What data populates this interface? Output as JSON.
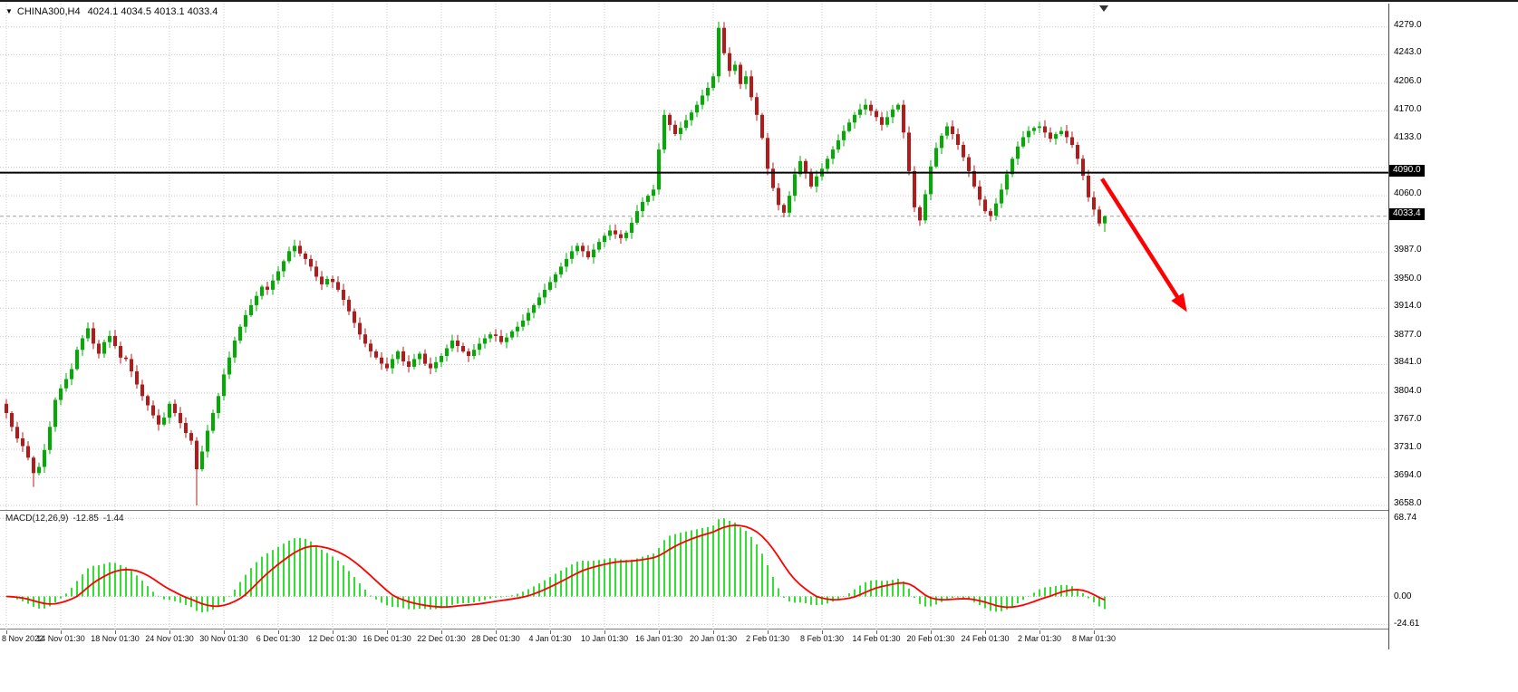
{
  "header": {
    "dropdown_icon": "▼",
    "symbol": "CHINA300,H4",
    "ohlc": "4024.1 4034.5 4013.1 4033.4"
  },
  "indicator_label": {
    "name": "MACD(12,26,9)",
    "macd": "-12.85",
    "signal": "-1.44"
  },
  "colors": {
    "up": "#00ad00",
    "down": "#b31b1b",
    "macd_bar": "#35dd35",
    "signal_line": "#ff0000",
    "grid": "#c9c9c9",
    "hline": "#000000",
    "bid_line": "#a0a0a0",
    "arrow": "#ff0000",
    "axis_text": "#000000",
    "axis_box_bg": "#000000",
    "axis_box_text": "#ffffff",
    "background": "#ffffff"
  },
  "price_axis": {
    "labels": [
      {
        "v": 4279.0,
        "t": "4279.0"
      },
      {
        "v": 4243.0,
        "t": "4243.0"
      },
      {
        "v": 4206.0,
        "t": "4206.0"
      },
      {
        "v": 4170.0,
        "t": "4170.0"
      },
      {
        "v": 4133.0,
        "t": "4133.0"
      },
      {
        "v": 4060.0,
        "t": "4060.0"
      },
      {
        "v": 3987.0,
        "t": "3987.0"
      },
      {
        "v": 3950.0,
        "t": "3950.0"
      },
      {
        "v": 3914.0,
        "t": "3914.0"
      },
      {
        "v": 3877.0,
        "t": "3877.0"
      },
      {
        "v": 3841.0,
        "t": "3841.0"
      },
      {
        "v": 3804.0,
        "t": "3804.0"
      },
      {
        "v": 3767.0,
        "t": "3767.0"
      },
      {
        "v": 3731.0,
        "t": "3731.0"
      },
      {
        "v": 3694.0,
        "t": "3694.0"
      },
      {
        "v": 3658.0,
        "t": "3658.0"
      }
    ],
    "boxes": [
      {
        "v": 4090.0,
        "t": "4090.0"
      },
      {
        "v": 4033.4,
        "t": "4033.4"
      }
    ]
  },
  "macd_axis": {
    "labels": [
      {
        "v": 68.74,
        "t": "68.74"
      },
      {
        "v": 0,
        "t": "0.00"
      },
      {
        "v": -24.61,
        "t": "-24.61"
      }
    ]
  },
  "time_axis": {
    "labels": [
      "8 Nov 2022",
      "14 Nov 01:30",
      "18 Nov 01:30",
      "24 Nov 01:30",
      "30 Nov 01:30",
      "6 Dec 01:30",
      "12 Dec 01:30",
      "16 Dec 01:30",
      "22 Dec 01:30",
      "28 Dec 01:30",
      "4 Jan 01:30",
      "10 Jan 01:30",
      "16 Jan 01:30",
      "20 Jan 01:30",
      "2 Feb 01:30",
      "8 Feb 01:30",
      "14 Feb 01:30",
      "20 Feb 01:30",
      "24 Feb 01:30",
      "2 Mar 01:30",
      "8 Mar 01:30"
    ]
  },
  "chart_data": [
    {
      "type": "candlestick",
      "symbol": "CHINA300",
      "timeframe": "H4",
      "title": "CHINA300,H4",
      "open": 4024.1,
      "high": 4034.5,
      "low": 4013.1,
      "close": 4033.4,
      "last_price": 4033.4,
      "horizontal_line": 4090.0,
      "y_range": [
        3651,
        4307
      ],
      "y_gridlines": [
        4279,
        4243,
        4206,
        4170,
        4133,
        4097,
        4060,
        4024,
        3987,
        3950,
        3914,
        3877,
        3841,
        3804,
        3767,
        3731,
        3694,
        3658
      ],
      "x_ticks": [
        "8 Nov 2022",
        "14 Nov 01:30",
        "18 Nov 01:30",
        "24 Nov 01:30",
        "30 Nov 01:30",
        "6 Dec 01:30",
        "12 Dec 01:30",
        "16 Dec 01:30",
        "22 Dec 01:30",
        "28 Dec 01:30",
        "4 Jan 01:30",
        "10 Jan 01:30",
        "16 Jan 01:30",
        "20 Jan 01:30",
        "2 Feb 01:30",
        "8 Feb 01:30",
        "14 Feb 01:30",
        "20 Feb 01:30",
        "24 Feb 01:30",
        "2 Mar 01:30",
        "8 Mar 01:30"
      ],
      "bars_per_tick": 10,
      "closes": [
        3778,
        3760,
        3745,
        3735,
        3720,
        3700,
        3708,
        3730,
        3760,
        3795,
        3810,
        3822,
        3835,
        3860,
        3875,
        3888,
        3868,
        3855,
        3870,
        3878,
        3865,
        3850,
        3848,
        3832,
        3815,
        3800,
        3788,
        3775,
        3763,
        3772,
        3790,
        3778,
        3765,
        3752,
        3742,
        3705,
        3728,
        3755,
        3778,
        3800,
        3828,
        3850,
        3872,
        3890,
        3905,
        3918,
        3930,
        3942,
        3938,
        3950,
        3962,
        3975,
        3988,
        3995,
        3985,
        3978,
        3968,
        3955,
        3945,
        3952,
        3948,
        3938,
        3925,
        3910,
        3895,
        3880,
        3868,
        3858,
        3850,
        3842,
        3836,
        3848,
        3858,
        3845,
        3838,
        3848,
        3855,
        3842,
        3836,
        3844,
        3852,
        3862,
        3872,
        3865,
        3858,
        3852,
        3860,
        3868,
        3875,
        3880,
        3878,
        3870,
        3876,
        3884,
        3890,
        3898,
        3908,
        3918,
        3928,
        3938,
        3948,
        3958,
        3968,
        3978,
        3988,
        3995,
        3988,
        3980,
        3990,
        4000,
        4008,
        4015,
        4010,
        4005,
        4012,
        4025,
        4040,
        4052,
        4060,
        4068,
        4120,
        4165,
        4152,
        4140,
        4148,
        4158,
        4168,
        4178,
        4190,
        4200,
        4215,
        4278,
        4245,
        4222,
        4230,
        4205,
        4215,
        4188,
        4165,
        4135,
        4095,
        4070,
        4048,
        4038,
        4060,
        4088,
        4105,
        4090,
        4072,
        4085,
        4095,
        4108,
        4120,
        4132,
        4144,
        4155,
        4165,
        4172,
        4178,
        4170,
        4162,
        4152,
        4162,
        4172,
        4178,
        4142,
        4092,
        4045,
        4028,
        4062,
        4098,
        4122,
        4138,
        4150,
        4140,
        4126,
        4110,
        4092,
        4072,
        4055,
        4040,
        4034,
        4050,
        4068,
        4088,
        4108,
        4124,
        4136,
        4144,
        4148,
        4150,
        4142,
        4134,
        4140,
        4144,
        4136,
        4126,
        4108,
        4086,
        4058,
        4042,
        4024,
        4033.4
      ],
      "wick_amplitude": 8,
      "overrides": [
        {
          "bar": 0,
          "open": 3790
        },
        {
          "bar": 5,
          "low": 3682
        },
        {
          "bar": 35,
          "low": 3658
        },
        {
          "bar": 131,
          "high": 4286
        },
        {
          "bar": 202,
          "open": 4024.1,
          "high": 4034.5,
          "low": 4013.1,
          "close": 4033.4
        }
      ],
      "annotation_arrow": {
        "from_bar": 201.5,
        "from_price": 4082,
        "to_bar": 216.5,
        "to_price": 3916
      }
    },
    {
      "type": "macd",
      "label": "MACD(12,26,9)",
      "params": [
        12,
        26,
        9
      ],
      "current_macd": -12.85,
      "current_signal": -1.44,
      "y_ticks": [
        68.74,
        0,
        -24.61
      ],
      "y_range": [
        73,
        -27.5
      ],
      "peak_value": 68.74,
      "negative_peak_display": -14
    }
  ]
}
